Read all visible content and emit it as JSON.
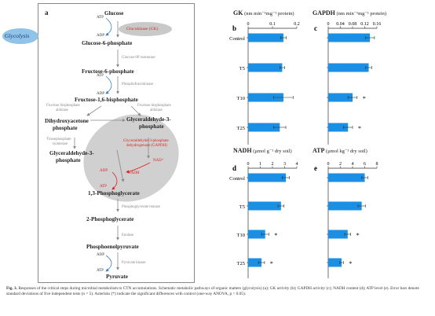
{
  "pathway": {
    "panel_label": "a",
    "glycolysis": "Glycolysis",
    "metabolites": {
      "glucose": "Glucose",
      "g6p": "Glucose-6-phosphate",
      "f6p": "Fructose-6-phosphate",
      "f16bp": "Fructose-1,6-bisphosphate",
      "dhap_line1": "Dihydroxyacetone",
      "dhap_line2": "phosphate",
      "g3p_right_line1": "Glyceraldehyde-3-",
      "g3p_right_line2": "phosphate",
      "g3p_left_line1": "Glyceraldehyde-3-",
      "g3p_left_line2": "phosphate",
      "bpg13": "1,3-Phosphoglycerate",
      "pg2": "2-Phosphoglycerate",
      "pep": "Phosphoenolpyruvate",
      "pyruvate": "Pyruvate"
    },
    "enzymes": {
      "gk": "Glucokinase (GK)",
      "g6p_isomerase": "Glucose-6P isomerase",
      "pfk": "Phosphofructokinase",
      "aldolase_left_1": "Fructose bisphosphate",
      "aldolase_left_2": "aldolase",
      "aldolase_right_1": "Fructose bisphosphate",
      "aldolase_right_2": "aldolase",
      "tpi_1": "Triosephosphate",
      "tpi_2": "isomerase",
      "gapdh_1": "Glyceraldehyde-3-phosphate",
      "gapdh_2": "dehydrogenase (GAPDH)",
      "pgm": "Phosphoglycerate mutase",
      "enolase": "Enolase",
      "pk": "Pyruvate kinase"
    },
    "cofactors": {
      "atp1": "ATP",
      "adp1": "ADP",
      "atp2": "ATP",
      "adp2": "ADP",
      "nad": "NAD⁺",
      "nadh": "NADH",
      "adp3": "ADP",
      "atp3": "ATP",
      "adp4": "ADP",
      "atp4": "ATP"
    }
  },
  "panels_header": {
    "gk_title": "GK",
    "gk_units": "(nm min⁻¹mg⁻¹ protein)",
    "gapdh_title": "GAPDH",
    "gapdh_units": "(nm min⁻¹mg⁻¹ protein)",
    "nadh_title": "NADH",
    "nadh_units": "(μmol g⁻¹ dry soil)",
    "atp_title": "ATP",
    "atp_units": "(μmol kg⁻¹ dry soil)"
  },
  "chart_data": [
    {
      "type": "bar",
      "orientation": "horizontal",
      "panel": "b",
      "title": "GK",
      "units": "(nm min⁻¹mg⁻¹ protein)",
      "categories": [
        "Control",
        "T5",
        "T10",
        "T25"
      ],
      "values": [
        0.145,
        0.14,
        0.145,
        0.13
      ],
      "errors": [
        0.012,
        0.01,
        0.04,
        0.025
      ],
      "significant": [
        false,
        false,
        false,
        false
      ],
      "xlim": [
        0,
        0.2
      ],
      "ticks": [
        "0",
        "0.1",
        "0.2"
      ],
      "tick_values": [
        0,
        0.1,
        0.2
      ],
      "bar_color": "#1a8fe3"
    },
    {
      "type": "bar",
      "orientation": "horizontal",
      "panel": "c",
      "title": "GAPDH",
      "units": "(nm min⁻¹mg⁻¹ protein)",
      "categories": [
        "Control",
        "T5",
        "T10",
        "T25"
      ],
      "values": [
        0.137,
        0.133,
        0.08,
        0.065
      ],
      "errors": [
        0.015,
        0.01,
        0.015,
        0.015
      ],
      "significant": [
        false,
        false,
        true,
        true
      ],
      "xlim": [
        0,
        0.16
      ],
      "ticks": [
        "0",
        "0.04",
        "0.08",
        "0.12",
        "0.16"
      ],
      "tick_values": [
        0,
        0.04,
        0.08,
        0.12,
        0.16
      ],
      "bar_color": "#1a8fe3"
    },
    {
      "type": "bar",
      "orientation": "horizontal",
      "panel": "d",
      "title": "NADH",
      "units": "(μmol g⁻¹ dry soil)",
      "categories": [
        "Control",
        "T5",
        "T10",
        "T25"
      ],
      "values": [
        3.1,
        2.7,
        1.4,
        1.1
      ],
      "errors": [
        0.3,
        0.25,
        0.3,
        0.25
      ],
      "significant": [
        false,
        false,
        true,
        true
      ],
      "xlim": [
        0,
        4
      ],
      "ticks": [
        "0",
        "1",
        "2",
        "3",
        "4"
      ],
      "tick_values": [
        0,
        1,
        2,
        3,
        4
      ],
      "bar_color": "#1a8fe3"
    },
    {
      "type": "bar",
      "orientation": "horizontal",
      "panel": "e",
      "title": "ATP",
      "units": "(μmol kg⁻¹ dry soil)",
      "categories": [
        "Control",
        "T5",
        "T10",
        "T25"
      ],
      "values": [
        6.0,
        5.5,
        3.2,
        2.2
      ],
      "errors": [
        0.5,
        0.6,
        0.5,
        0.3
      ],
      "significant": [
        false,
        false,
        true,
        true
      ],
      "xlim": [
        0,
        8
      ],
      "ticks": [
        "0",
        "2",
        "4",
        "6",
        "8"
      ],
      "tick_values": [
        0,
        2,
        4,
        6,
        8
      ],
      "bar_color": "#1a8fe3"
    }
  ],
  "caption": {
    "label": "Fig. 3.",
    "text": "Responses of the critical steps during microbial metabolism to CTN accumulations. Schematic metabolic pathways of organic matters (glycolysis) (a); GK activity (b); GAPDH activity (c); NADH content (d); ATP level (e). Error bars denote standard deviations of five independent tests (n = 5). Asterisks (*) indicate the significant differences with control (one-way ANOVA, p < 0.05)."
  }
}
